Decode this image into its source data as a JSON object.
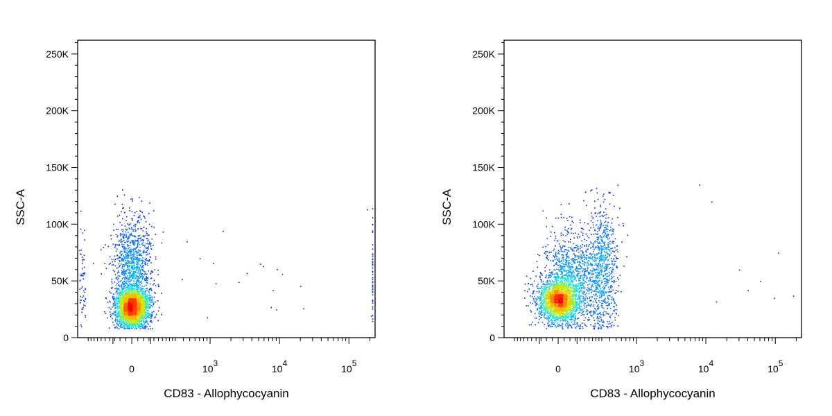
{
  "colors": {
    "density_low": "#0000ff",
    "density_mid_low": "#00e5ff",
    "density_mid": "#c8f000",
    "density_mid_high": "#ffb000",
    "density_high": "#ff0000",
    "frame": "#000000",
    "background": "#ffffff"
  },
  "chart_data": [
    {
      "type": "scatter",
      "plot_style": "flow cytometry pseudocolor density dot plot",
      "xlabel": "CD83 - Allophycocyanin",
      "ylabel": "SSC-A",
      "x_scale": "biexponential",
      "y_scale": "linear",
      "xlim": [
        -300,
        200000
      ],
      "ylim": [
        0,
        262144
      ],
      "x_tick_labels": [
        {
          "value": 0,
          "base": "0",
          "exp": ""
        },
        {
          "value": 1000,
          "base": "10",
          "exp": "3"
        },
        {
          "value": 10000,
          "base": "10",
          "exp": "4"
        },
        {
          "value": 100000,
          "base": "10",
          "exp": "5"
        }
      ],
      "y_tick_labels": [
        {
          "value": 0,
          "label": "0"
        },
        {
          "value": 50000,
          "label": "50K"
        },
        {
          "value": 100000,
          "label": "100K"
        },
        {
          "value": 150000,
          "label": "150K"
        },
        {
          "value": 200000,
          "label": "200K"
        },
        {
          "value": 250000,
          "label": "250K"
        }
      ],
      "series": [
        {
          "populations": [
            {
              "x_center": 0,
              "x_spread": 1,
              "y_center": 27000,
              "y_spread": 9000,
              "fraction": 0.7
            },
            {
              "x_center": 0,
              "x_spread": 1.2,
              "y_center": 65000,
              "y_spread": 22000,
              "fraction": 0.27
            },
            {
              "x_center": 150,
              "x_spread": 120,
              "y_center": 55000,
              "y_spread": 25000,
              "fraction": 0.03
            }
          ],
          "outliers": [
            {
              "x": 8000,
              "y": 42000
            },
            {
              "x": 7500,
              "y": 27000
            },
            {
              "x": 9000,
              "y": 25000
            },
            {
              "x": 22000,
              "y": 26000
            },
            {
              "x": 1100,
              "y": 66000
            },
            {
              "x": 700,
              "y": 70000
            },
            {
              "x": 900,
              "y": 18000
            },
            {
              "x": 450,
              "y": 85000
            },
            {
              "x": 1200,
              "y": 48000
            }
          ]
        }
      ]
    },
    {
      "type": "scatter",
      "plot_style": "flow cytometry pseudocolor density dot plot",
      "xlabel": "CD83 - Allophycocyanin",
      "ylabel": "SSC-A",
      "x_scale": "biexponential",
      "y_scale": "linear",
      "xlim": [
        -300,
        200000
      ],
      "ylim": [
        0,
        262144
      ],
      "x_tick_labels": [
        {
          "value": 0,
          "base": "0",
          "exp": ""
        },
        {
          "value": 1000,
          "base": "10",
          "exp": "3"
        },
        {
          "value": 10000,
          "base": "10",
          "exp": "4"
        },
        {
          "value": 100000,
          "base": "10",
          "exp": "5"
        }
      ],
      "y_tick_labels": [
        {
          "value": 0,
          "label": "0"
        },
        {
          "value": 50000,
          "label": "50K"
        },
        {
          "value": 100000,
          "label": "100K"
        },
        {
          "value": 150000,
          "label": "150K"
        },
        {
          "value": 200000,
          "label": "200K"
        },
        {
          "value": 250000,
          "label": "250K"
        }
      ],
      "series": [
        {
          "populations": [
            {
              "x_center": 0,
              "x_spread": 1.2,
              "y_center": 33000,
              "y_spread": 9000,
              "fraction": 0.5
            },
            {
              "x_center": 60,
              "x_spread": 1.8,
              "y_center": 50000,
              "y_spread": 22000,
              "fraction": 0.3
            },
            {
              "x_center": 300,
              "x_spread": 1.0,
              "y_center": 62000,
              "y_spread": 28000,
              "fraction": 0.2
            }
          ],
          "outliers": [
            {
              "x": 110000,
              "y": 75000
            },
            {
              "x": 180000,
              "y": 37000
            },
            {
              "x": 95000,
              "y": 35000
            },
            {
              "x": 60000,
              "y": 50000
            },
            {
              "x": 14000,
              "y": 32000
            },
            {
              "x": 30000,
              "y": 60000
            },
            {
              "x": 12000,
              "y": 120000
            },
            {
              "x": 8000,
              "y": 135000
            },
            {
              "x": 40000,
              "y": 42000
            }
          ]
        }
      ]
    }
  ]
}
